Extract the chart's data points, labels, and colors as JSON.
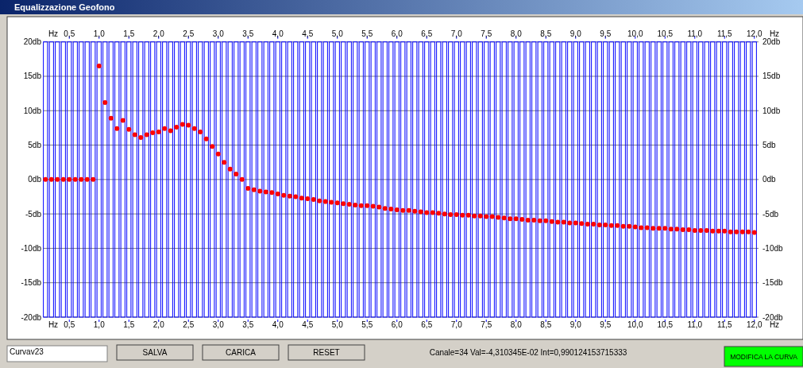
{
  "chart_data": {
    "type": "scatter",
    "title": "Equalizzazione Geofono",
    "xlabel": "Hz",
    "x2label": "Hz",
    "x": [
      0.1,
      0.2,
      0.3,
      0.4,
      0.5,
      0.6,
      0.7,
      0.8,
      0.9,
      1.0,
      1.1,
      1.2,
      1.3,
      1.4,
      1.5,
      1.6,
      1.7,
      1.8,
      1.9,
      2.0,
      2.1,
      2.2,
      2.3,
      2.4,
      2.5,
      2.6,
      2.7,
      2.8,
      2.9,
      3.0,
      3.1,
      3.2,
      3.3,
      3.4,
      3.5,
      3.6,
      3.7,
      3.8,
      3.9,
      4.0,
      4.1,
      4.2,
      4.3,
      4.4,
      4.5,
      4.6,
      4.7,
      4.8,
      4.9,
      5.0,
      5.1,
      5.2,
      5.3,
      5.4,
      5.5,
      5.6,
      5.7,
      5.8,
      5.9,
      6.0,
      6.1,
      6.2,
      6.3,
      6.4,
      6.5,
      6.6,
      6.7,
      6.8,
      6.9,
      7.0,
      7.1,
      7.2,
      7.3,
      7.4,
      7.5,
      7.6,
      7.7,
      7.8,
      7.9,
      8.0,
      8.1,
      8.2,
      8.3,
      8.4,
      8.5,
      8.6,
      8.7,
      8.8,
      8.9,
      9.0,
      9.1,
      9.2,
      9.3,
      9.4,
      9.5,
      9.6,
      9.7,
      9.8,
      9.9,
      10.0,
      10.1,
      10.2,
      10.3,
      10.4,
      10.5,
      10.6,
      10.7,
      10.8,
      10.9,
      11.0,
      11.1,
      11.2,
      11.3,
      11.4,
      11.5,
      11.6,
      11.7,
      11.8,
      11.9,
      12.0
    ],
    "series": [
      {
        "color": "#ff0000",
        "values": [
          0,
          0,
          0,
          0,
          0,
          0,
          0,
          0,
          0,
          16.5,
          11.2,
          8.9,
          7.4,
          8.6,
          7.3,
          6.5,
          6.1,
          6.5,
          6.8,
          6.9,
          7.4,
          7.1,
          7.6,
          8.0,
          7.9,
          7.4,
          6.9,
          5.9,
          4.8,
          3.7,
          2.5,
          1.5,
          0.8,
          0.0,
          -1.3,
          -1.5,
          -1.7,
          -1.8,
          -1.9,
          -2.1,
          -2.3,
          -2.4,
          -2.5,
          -2.7,
          -2.8,
          -2.9,
          -3.1,
          -3.2,
          -3.3,
          -3.4,
          -3.5,
          -3.6,
          -3.7,
          -3.8,
          -3.8,
          -3.9,
          -4.0,
          -4.2,
          -4.3,
          -4.4,
          -4.5,
          -4.5,
          -4.6,
          -4.7,
          -4.8,
          -4.8,
          -4.9,
          -5.0,
          -5.1,
          -5.1,
          -5.2,
          -5.2,
          -5.3,
          -5.3,
          -5.4,
          -5.4,
          -5.5,
          -5.6,
          -5.7,
          -5.7,
          -5.8,
          -5.9,
          -5.9,
          -6.0,
          -6.0,
          -6.1,
          -6.2,
          -6.2,
          -6.3,
          -6.3,
          -6.4,
          -6.5,
          -6.5,
          -6.6,
          -6.6,
          -6.7,
          -6.7,
          -6.8,
          -6.8,
          -6.9,
          -7.0,
          -7.0,
          -7.1,
          -7.1,
          -7.1,
          -7.2,
          -7.2,
          -7.3,
          -7.3,
          -7.4,
          -7.4,
          -7.4,
          -7.5,
          -7.5,
          -7.5,
          -7.6,
          -7.6,
          -7.6,
          -7.6,
          -7.7
        ]
      },
      {
        "type": "bar",
        "color": "#0000ff",
        "base": [
          -20,
          -20,
          -20,
          -20,
          -20,
          -20,
          -20,
          -20,
          -20,
          -20,
          -20,
          -20,
          -20,
          -20,
          -20,
          -20,
          -20,
          -20,
          -20,
          -20,
          -20,
          -20,
          -20,
          -20,
          -20,
          -20,
          -20,
          -20,
          -20,
          -20,
          -20,
          -20,
          -20,
          -20,
          -20,
          -20,
          -20,
          -20,
          -20,
          -20,
          -20,
          -20,
          -20,
          -20,
          -20,
          -20,
          -20,
          -20,
          -20,
          -20,
          -20,
          -20,
          -20,
          -20,
          -20,
          -20,
          -20,
          -20,
          -20,
          -20,
          -20,
          -20,
          -20,
          -20,
          -20,
          -20,
          -20,
          -20,
          -20,
          -20,
          -20,
          -20,
          -20,
          -20,
          -20,
          -20,
          -20,
          -20,
          -20,
          -20,
          -20,
          -20,
          -20,
          -20,
          -20,
          -20,
          -20,
          -20,
          -20,
          -20,
          -20,
          -20,
          -20,
          -20,
          -20,
          -20,
          -20,
          -20,
          -20,
          -20,
          -20,
          -20,
          -20,
          -20,
          -20,
          -20,
          -20,
          -20,
          -20,
          -20,
          -20,
          -20,
          -20,
          -20,
          -20,
          -20,
          -20,
          -20,
          -20,
          -20
        ],
        "values": [
          40,
          40,
          40,
          40,
          40,
          40,
          40,
          40,
          40,
          40,
          40,
          40,
          40,
          40,
          40,
          40,
          40,
          40,
          40,
          40,
          40,
          40,
          40,
          40,
          40,
          40,
          40,
          40,
          40,
          40,
          40,
          40,
          40,
          40,
          40,
          40,
          40,
          40,
          40,
          40,
          40,
          40,
          40,
          40,
          40,
          40,
          40,
          40,
          40,
          40,
          40,
          40,
          40,
          40,
          40,
          40,
          40,
          40,
          40,
          40,
          40,
          40,
          40,
          40,
          40,
          40,
          40,
          40,
          40,
          40,
          40,
          40,
          40,
          40,
          40,
          40,
          40,
          40,
          40,
          40,
          40,
          40,
          40,
          40,
          40,
          40,
          40,
          40,
          40,
          40,
          40,
          40,
          40,
          40,
          40,
          40,
          40,
          40,
          40,
          40,
          40,
          40,
          40,
          40,
          40,
          40,
          40,
          40,
          40,
          40,
          40,
          40,
          40,
          40,
          40,
          40,
          40,
          40,
          40,
          40
        ]
      }
    ],
    "marker": "circle",
    "xlim": [
      0.07,
      12.07
    ],
    "xticks": [
      {
        "value": 0.5,
        "label": "0,5"
      },
      {
        "value": 1.0,
        "label": "1,0"
      },
      {
        "value": 1.5,
        "label": "1,5"
      },
      {
        "value": 2.0,
        "label": "2,0"
      },
      {
        "value": 2.5,
        "label": "2,5"
      },
      {
        "value": 3.0,
        "label": "3,0"
      },
      {
        "value": 3.5,
        "label": "3,5"
      },
      {
        "value": 4.0,
        "label": "4,0"
      },
      {
        "value": 4.5,
        "label": "4,5"
      },
      {
        "value": 5.0,
        "label": "5,0"
      },
      {
        "value": 5.5,
        "label": "5,5"
      },
      {
        "value": 6.0,
        "label": "6,0"
      },
      {
        "value": 6.5,
        "label": "6,5"
      },
      {
        "value": 7.0,
        "label": "7,0"
      },
      {
        "value": 7.5,
        "label": "7,5"
      },
      {
        "value": 8.0,
        "label": "8,0"
      },
      {
        "value": 8.5,
        "label": "8,5"
      },
      {
        "value": 9.0,
        "label": "9,0"
      },
      {
        "value": 9.5,
        "label": "9,5"
      },
      {
        "value": 10.0,
        "label": "10,0"
      },
      {
        "value": 10.5,
        "label": "10,5"
      },
      {
        "value": 11.0,
        "label": "11,0"
      },
      {
        "value": 11.5,
        "label": "11,5"
      },
      {
        "value": 12.0,
        "label": "12,0"
      }
    ],
    "x2lim": [
      0.07,
      12.07
    ],
    "x2ticks": [
      {
        "value": 0.5,
        "label": "0,5"
      },
      {
        "value": 1.0,
        "label": "1,0"
      },
      {
        "value": 1.5,
        "label": "1,5"
      },
      {
        "value": 2.0,
        "label": "2,0"
      },
      {
        "value": 2.5,
        "label": "2,5"
      },
      {
        "value": 3.0,
        "label": "3,0"
      },
      {
        "value": 3.5,
        "label": "3,5"
      },
      {
        "value": 4.0,
        "label": "4,0"
      },
      {
        "value": 4.5,
        "label": "4,5"
      },
      {
        "value": 5.0,
        "label": "5,0"
      },
      {
        "value": 5.5,
        "label": "5,5"
      },
      {
        "value": 6.0,
        "label": "6,0"
      },
      {
        "value": 6.5,
        "label": "6,5"
      },
      {
        "value": 7.0,
        "label": "7,0"
      },
      {
        "value": 7.5,
        "label": "7,5"
      },
      {
        "value": 8.0,
        "label": "8,0"
      },
      {
        "value": 8.5,
        "label": "8,5"
      },
      {
        "value": 9.0,
        "label": "9,0"
      },
      {
        "value": 9.5,
        "label": "9,5"
      },
      {
        "value": 10.0,
        "label": "10,0"
      },
      {
        "value": 10.5,
        "label": "10,5"
      },
      {
        "value": 11.0,
        "label": "11,0"
      },
      {
        "value": 11.5,
        "label": "11,5"
      },
      {
        "value": 12.0,
        "label": "12,0"
      }
    ],
    "ylim": [
      -20,
      20
    ],
    "yticks": [
      {
        "value": -20,
        "label": "-20db"
      },
      {
        "value": -15,
        "label": "-15db"
      },
      {
        "value": -10,
        "label": "-10db"
      },
      {
        "value": -5,
        "label": "-5db"
      },
      {
        "value": 0,
        "label": "0db"
      },
      {
        "value": 5,
        "label": "5db"
      },
      {
        "value": 10,
        "label": "10db"
      },
      {
        "value": 15,
        "label": "15db"
      },
      {
        "value": 20,
        "label": "20db"
      }
    ],
    "y2lim": [
      -20,
      20
    ],
    "y2ticks": [
      {
        "value": -20,
        "label": "-20db"
      },
      {
        "value": -15,
        "label": "-15db"
      },
      {
        "value": -10,
        "label": "-10db"
      },
      {
        "value": -5,
        "label": "-5db"
      },
      {
        "value": 0,
        "label": "0db"
      },
      {
        "value": 5,
        "label": "5db"
      },
      {
        "value": 10,
        "label": "10db"
      },
      {
        "value": 15,
        "label": "15db"
      },
      {
        "value": 20,
        "label": "20db"
      }
    ],
    "grid": "y",
    "annotations": [
      "Curvav23",
      "SALVA",
      "CARICA",
      "RESET",
      "Canale=34 Val=-4,310345E-02 Int=0,990124153715333",
      "MODIFICA LA CURVA"
    ]
  }
}
